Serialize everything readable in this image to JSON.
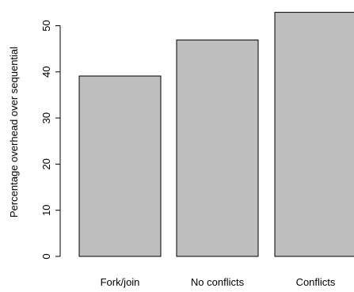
{
  "chart_data": {
    "type": "bar",
    "title": "",
    "xlabel": "",
    "ylabel": "Percentage overhead over sequential",
    "categories": [
      "Fork/join",
      "No conflicts",
      "Conflicts"
    ],
    "values": [
      39.1,
      46.9,
      52.9
    ],
    "ylim": [
      0,
      53
    ],
    "yticks": [
      0,
      10,
      20,
      30,
      40,
      50
    ],
    "grid": false,
    "legend": "none",
    "bar_color": "#bebebe",
    "bar_stroke": "#000000",
    "axis_color": "#000000"
  }
}
